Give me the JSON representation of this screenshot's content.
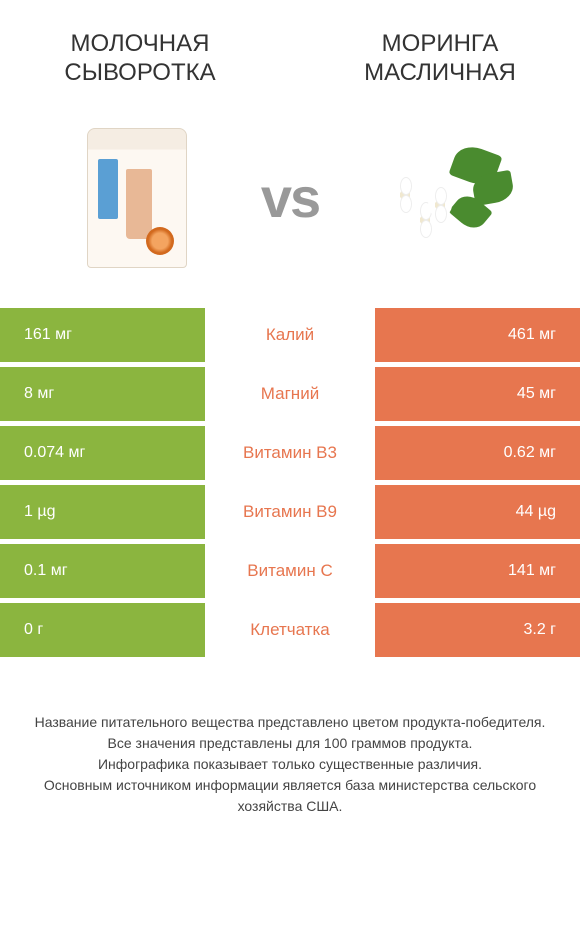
{
  "colors": {
    "left": "#8bb53f",
    "right": "#e7764f"
  },
  "products": {
    "left": {
      "name": "Молочная сыворотка"
    },
    "right": {
      "name": "Моринга масличная"
    }
  },
  "vs": "vs",
  "rows": [
    {
      "label": "Калий",
      "left": "161 мг",
      "right": "461 мг",
      "winner": "right"
    },
    {
      "label": "Магний",
      "left": "8 мг",
      "right": "45 мг",
      "winner": "right"
    },
    {
      "label": "Витамин B3",
      "left": "0.074 мг",
      "right": "0.62 мг",
      "winner": "right"
    },
    {
      "label": "Витамин B9",
      "left": "1 µg",
      "right": "44 µg",
      "winner": "right"
    },
    {
      "label": "Витамин C",
      "left": "0.1 мг",
      "right": "141 мг",
      "winner": "right"
    },
    {
      "label": "Клетчатка",
      "left": "0 г",
      "right": "3.2 г",
      "winner": "right"
    }
  ],
  "footer": {
    "line1": "Название питательного вещества представлено цветом продукта-победителя.",
    "line2": "Все значения представлены для 100 граммов продукта.",
    "line3": "Инфографика показывает только существенные различия.",
    "line4": "Основным источником информации является база министерства сельского хозяйства США."
  }
}
